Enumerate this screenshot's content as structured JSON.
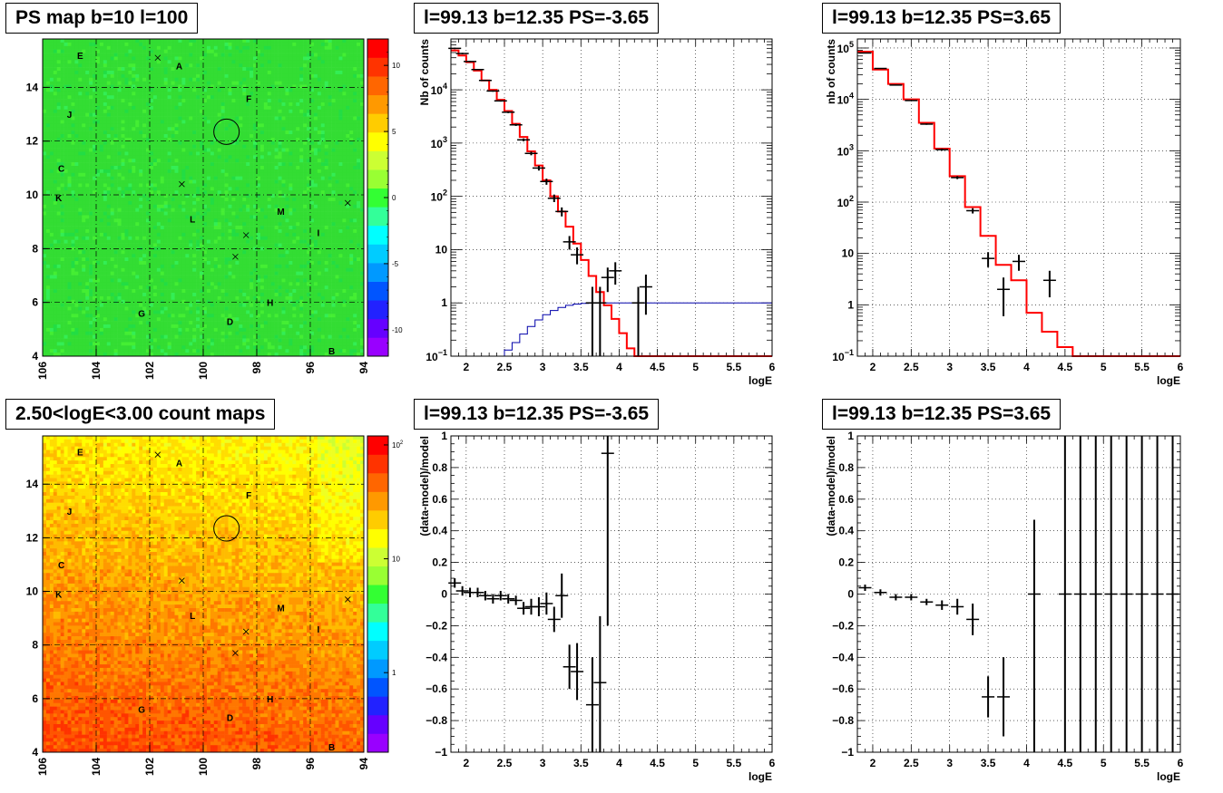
{
  "titles": {
    "map_top": "PS map b=10 l=100",
    "spec_left": "l=99.13 b=12.35 PS=-3.65",
    "spec_right": "l=99.13 b=12.35 PS=3.65",
    "map_bottom": "2.50<logE<3.00 count maps",
    "res_left": "l=99.13 b=12.35 PS=-3.65",
    "res_right": "l=99.13 b=12.35 PS=3.65"
  },
  "colors": {
    "model": "#ff0000",
    "ps_model": "#0000aa",
    "data": "#000000",
    "map_green": "#33dd33"
  },
  "chart_data": [
    {
      "type": "heatmap",
      "panel": "map_top",
      "title": "PS map b=10 l=100",
      "x_ticks": [
        "106",
        "104",
        "102",
        "100",
        "98",
        "96",
        "94"
      ],
      "y_ticks": [
        "4",
        "6",
        "8",
        "10",
        "12",
        "14"
      ],
      "xlim": [
        106,
        94
      ],
      "ylim": [
        4,
        15.8
      ],
      "colorbar_ticks": [
        "10",
        "5",
        "0",
        "-5",
        "-10"
      ],
      "zlim": [
        -12,
        12
      ],
      "source_labels": [
        {
          "name": "E",
          "l": 104.6,
          "b": 15.2
        },
        {
          "name": "A",
          "l": 100.9,
          "b": 14.8
        },
        {
          "name": "F",
          "l": 98.3,
          "b": 13.6
        },
        {
          "name": "J",
          "l": 105.0,
          "b": 13.0
        },
        {
          "name": "C",
          "l": 105.3,
          "b": 11.0
        },
        {
          "name": "K",
          "l": 105.4,
          "b": 9.9
        },
        {
          "name": "L",
          "l": 100.4,
          "b": 9.1
        },
        {
          "name": "M",
          "l": 97.1,
          "b": 9.4
        },
        {
          "name": "I",
          "l": 95.7,
          "b": 8.6
        },
        {
          "name": "H",
          "l": 97.5,
          "b": 6.0
        },
        {
          "name": "G",
          "l": 102.3,
          "b": 5.6
        },
        {
          "name": "D",
          "l": 99.0,
          "b": 5.3
        },
        {
          "name": "B",
          "l": 95.2,
          "b": 4.2
        }
      ],
      "crosses": [
        {
          "l": 101.7,
          "b": 15.1
        },
        {
          "l": 100.8,
          "b": 10.4
        },
        {
          "l": 98.4,
          "b": 8.5
        },
        {
          "l": 98.8,
          "b": 7.7
        },
        {
          "l": 94.6,
          "b": 9.7
        }
      ],
      "circle": {
        "l": 99.13,
        "b": 12.35
      }
    },
    {
      "type": "line",
      "panel": "spec_left",
      "title": "l=99.13 b=12.35 PS=-3.65",
      "xlabel": "logE",
      "ylabel": "Nb of counts",
      "xlim": [
        1.8,
        6
      ],
      "ylim": [
        0.1,
        90000
      ],
      "log_y": true,
      "grid": true,
      "x_ticks": [
        "2",
        "2.5",
        "3",
        "3.5",
        "4",
        "4.5",
        "5",
        "5.5",
        "6"
      ],
      "y_ticks": [
        {
          "v": 0.1,
          "label": "10^-1"
        },
        {
          "v": 1,
          "label": "1"
        },
        {
          "v": 10,
          "label": "10"
        },
        {
          "v": 100,
          "label": "10^2"
        },
        {
          "v": 1000,
          "label": "10^3"
        },
        {
          "v": 10000,
          "label": "10^4"
        }
      ],
      "model_edges": [
        1.8,
        1.9,
        2.0,
        2.1,
        2.2,
        2.3,
        2.4,
        2.5,
        2.6,
        2.7,
        2.8,
        2.9,
        3.0,
        3.1,
        3.2,
        3.3,
        3.4,
        3.5,
        3.6,
        3.7,
        3.8,
        3.9,
        4.0,
        4.1,
        4.2,
        4.3,
        6.0
      ],
      "model_values": [
        55000,
        44000,
        33000,
        23000,
        15000,
        10000,
        6500,
        4000,
        2300,
        1300,
        700,
        380,
        200,
        100,
        52,
        27,
        13,
        6.4,
        3.2,
        1.6,
        0.9,
        0.5,
        0.27,
        0.14,
        0.1,
        0.1
      ],
      "ps_model_edges": [
        2.4,
        2.5,
        2.6,
        2.7,
        2.8,
        2.9,
        3.0,
        3.1,
        3.2,
        3.3,
        3.4,
        3.5,
        3.6,
        3.7,
        3.8,
        6.0
      ],
      "ps_model_values": [
        0.1,
        0.13,
        0.18,
        0.26,
        0.36,
        0.48,
        0.6,
        0.72,
        0.82,
        0.9,
        0.95,
        0.98,
        0.99,
        1.0,
        1.0
      ],
      "data_points": [
        {
          "x": 1.85,
          "y": 60000,
          "lo": 58000,
          "hi": 62000
        },
        {
          "x": 1.95,
          "y": 48000,
          "lo": 46500,
          "hi": 49500
        },
        {
          "x": 2.05,
          "y": 34000,
          "lo": 33000,
          "hi": 35000
        },
        {
          "x": 2.15,
          "y": 24000,
          "lo": 23300,
          "hi": 24700
        },
        {
          "x": 2.25,
          "y": 15000,
          "lo": 14600,
          "hi": 15400
        },
        {
          "x": 2.35,
          "y": 9500,
          "lo": 9200,
          "hi": 9800
        },
        {
          "x": 2.45,
          "y": 6200,
          "lo": 6000,
          "hi": 6400
        },
        {
          "x": 2.55,
          "y": 3800,
          "lo": 3650,
          "hi": 3950
        },
        {
          "x": 2.65,
          "y": 2200,
          "lo": 2100,
          "hi": 2300
        },
        {
          "x": 2.75,
          "y": 1150,
          "lo": 1080,
          "hi": 1220
        },
        {
          "x": 2.85,
          "y": 640,
          "lo": 590,
          "hi": 690
        },
        {
          "x": 2.95,
          "y": 340,
          "lo": 305,
          "hi": 375
        },
        {
          "x": 3.05,
          "y": 190,
          "lo": 165,
          "hi": 215
        },
        {
          "x": 3.15,
          "y": 92,
          "lo": 78,
          "hi": 108
        },
        {
          "x": 3.25,
          "y": 52,
          "lo": 42,
          "hi": 62
        },
        {
          "x": 3.35,
          "y": 14,
          "lo": 10,
          "hi": 18
        },
        {
          "x": 3.45,
          "y": 8,
          "lo": 5.3,
          "hi": 11
        },
        {
          "x": 3.65,
          "y": 1,
          "lo": 0.1,
          "hi": 2
        },
        {
          "x": 3.75,
          "y": 1,
          "lo": 0.1,
          "hi": 2
        },
        {
          "x": 3.85,
          "y": 3,
          "lo": 1.6,
          "hi": 4.6
        },
        {
          "x": 3.95,
          "y": 4,
          "lo": 2.2,
          "hi": 5.8
        },
        {
          "x": 4.25,
          "y": 1,
          "lo": 0.1,
          "hi": 2
        },
        {
          "x": 4.35,
          "y": 2,
          "lo": 0.6,
          "hi": 3.4
        }
      ]
    },
    {
      "type": "line",
      "panel": "spec_right",
      "title": "l=99.13 b=12.35 PS=3.65",
      "xlabel": "logE",
      "ylabel": "nb of counts",
      "xlim": [
        1.8,
        6
      ],
      "ylim": [
        0.1,
        150000
      ],
      "log_y": true,
      "grid": true,
      "x_ticks": [
        "2",
        "2.5",
        "3",
        "3.5",
        "4",
        "4.5",
        "5",
        "5.5",
        "6"
      ],
      "y_ticks": [
        {
          "v": 0.1,
          "label": "10^-1"
        },
        {
          "v": 1,
          "label": "1"
        },
        {
          "v": 10,
          "label": "10"
        },
        {
          "v": 100,
          "label": "10^2"
        },
        {
          "v": 1000,
          "label": "10^3"
        },
        {
          "v": 10000,
          "label": "10^4"
        },
        {
          "v": 100000,
          "label": "10^5"
        }
      ],
      "model_edges": [
        1.8,
        2.0,
        2.2,
        2.4,
        2.6,
        2.8,
        3.0,
        3.2,
        3.4,
        3.6,
        3.8,
        4.0,
        4.2,
        4.4,
        4.6,
        6.0
      ],
      "model_values": [
        85000,
        38000,
        20000,
        10000,
        3500,
        1100,
        320,
        80,
        22,
        6,
        3,
        0.7,
        0.3,
        0.15,
        0.1
      ],
      "data_points": [
        {
          "x": 1.9,
          "y": 80000,
          "lo": 79000,
          "hi": 81000
        },
        {
          "x": 2.1,
          "y": 40000,
          "lo": 39500,
          "hi": 40500
        },
        {
          "x": 2.3,
          "y": 19000,
          "lo": 18600,
          "hi": 19400
        },
        {
          "x": 2.5,
          "y": 9500,
          "lo": 9300,
          "hi": 9700
        },
        {
          "x": 2.7,
          "y": 3300,
          "lo": 3200,
          "hi": 3400
        },
        {
          "x": 2.9,
          "y": 1050,
          "lo": 1000,
          "hi": 1100
        },
        {
          "x": 3.1,
          "y": 300,
          "lo": 280,
          "hi": 320
        },
        {
          "x": 3.3,
          "y": 68,
          "lo": 60,
          "hi": 76
        },
        {
          "x": 3.5,
          "y": 8,
          "lo": 5.4,
          "hi": 10.6
        },
        {
          "x": 3.7,
          "y": 2,
          "lo": 0.6,
          "hi": 3.4
        },
        {
          "x": 3.9,
          "y": 7,
          "lo": 4.6,
          "hi": 9.4
        },
        {
          "x": 4.3,
          "y": 3,
          "lo": 1.4,
          "hi": 4.6
        }
      ]
    },
    {
      "type": "heatmap",
      "panel": "map_bottom",
      "title": "2.50<logE<3.00 count maps",
      "x_ticks": [
        "106",
        "104",
        "102",
        "100",
        "98",
        "96",
        "94"
      ],
      "y_ticks": [
        "4",
        "6",
        "8",
        "10",
        "12",
        "14"
      ],
      "xlim": [
        106,
        94
      ],
      "ylim": [
        4,
        15.8
      ],
      "colorbar_ticks": [
        {
          "v": 100,
          "label": "10^2"
        },
        {
          "v": 10,
          "label": "10"
        },
        {
          "v": 1,
          "label": "1"
        }
      ],
      "zlim": [
        0.2,
        120
      ],
      "log_z": true
    },
    {
      "type": "scatter",
      "panel": "res_left",
      "title": "l=99.13 b=12.35 PS=-3.65",
      "xlabel": "logE",
      "ylabel": "(data-model)/model",
      "xlim": [
        1.8,
        6
      ],
      "ylim": [
        -1,
        1
      ],
      "grid": true,
      "x_ticks": [
        "2",
        "2.5",
        "3",
        "3.5",
        "4",
        "4.5",
        "5",
        "5.5",
        "6"
      ],
      "y_ticks": [
        "-1",
        "-0.8",
        "-0.6",
        "-0.4",
        "-0.2",
        "0",
        "0.2",
        "0.4",
        "0.6",
        "0.8",
        "1"
      ],
      "data_points": [
        {
          "x": 1.85,
          "y": 0.07,
          "lo": 0.04,
          "hi": 0.1
        },
        {
          "x": 1.95,
          "y": 0.02,
          "lo": -0.01,
          "hi": 0.05
        },
        {
          "x": 2.05,
          "y": 0.01,
          "lo": -0.02,
          "hi": 0.04
        },
        {
          "x": 2.15,
          "y": 0.01,
          "lo": -0.02,
          "hi": 0.04
        },
        {
          "x": 2.25,
          "y": -0.01,
          "lo": -0.04,
          "hi": 0.02
        },
        {
          "x": 2.35,
          "y": -0.03,
          "lo": -0.06,
          "hi": 0.0
        },
        {
          "x": 2.45,
          "y": -0.01,
          "lo": -0.04,
          "hi": 0.02
        },
        {
          "x": 2.55,
          "y": -0.03,
          "lo": -0.06,
          "hi": 0.0
        },
        {
          "x": 2.65,
          "y": -0.04,
          "lo": -0.07,
          "hi": -0.01
        },
        {
          "x": 2.75,
          "y": -0.09,
          "lo": -0.13,
          "hi": -0.05
        },
        {
          "x": 2.85,
          "y": -0.08,
          "lo": -0.13,
          "hi": -0.03
        },
        {
          "x": 2.95,
          "y": -0.08,
          "lo": -0.14,
          "hi": -0.02
        },
        {
          "x": 3.05,
          "y": -0.06,
          "lo": -0.13,
          "hi": 0.01
        },
        {
          "x": 3.15,
          "y": -0.16,
          "lo": -0.24,
          "hi": -0.08
        },
        {
          "x": 3.25,
          "y": -0.01,
          "lo": -0.15,
          "hi": 0.13
        },
        {
          "x": 3.35,
          "y": -0.46,
          "lo": -0.6,
          "hi": -0.32
        },
        {
          "x": 3.45,
          "y": -0.49,
          "lo": -0.67,
          "hi": -0.31
        },
        {
          "x": 3.65,
          "y": -0.7,
          "lo": -1.0,
          "hi": -0.4
        },
        {
          "x": 3.75,
          "y": -0.56,
          "lo": -1.0,
          "hi": -0.14
        },
        {
          "x": 3.85,
          "y": 0.89,
          "lo": -0.2,
          "hi": 1.0
        }
      ]
    },
    {
      "type": "scatter",
      "panel": "res_right",
      "title": "l=99.13 b=12.35 PS=3.65",
      "xlabel": "logE",
      "ylabel": "(data-model)/model",
      "xlim": [
        1.8,
        6
      ],
      "ylim": [
        -1,
        1
      ],
      "grid": true,
      "x_ticks": [
        "2",
        "2.5",
        "3",
        "3.5",
        "4",
        "4.5",
        "5",
        "5.5",
        "6"
      ],
      "y_ticks": [
        "-1",
        "-0.8",
        "-0.6",
        "-0.4",
        "-0.2",
        "0",
        "0.2",
        "0.4",
        "0.6",
        "0.8",
        "1"
      ],
      "data_points": [
        {
          "x": 1.9,
          "y": 0.04,
          "lo": 0.02,
          "hi": 0.06
        },
        {
          "x": 2.1,
          "y": 0.01,
          "lo": -0.01,
          "hi": 0.03
        },
        {
          "x": 2.3,
          "y": -0.02,
          "lo": -0.04,
          "hi": 0.0
        },
        {
          "x": 2.5,
          "y": -0.02,
          "lo": -0.04,
          "hi": 0.0
        },
        {
          "x": 2.7,
          "y": -0.05,
          "lo": -0.07,
          "hi": -0.03
        },
        {
          "x": 2.9,
          "y": -0.07,
          "lo": -0.1,
          "hi": -0.04
        },
        {
          "x": 3.1,
          "y": -0.08,
          "lo": -0.13,
          "hi": -0.03
        },
        {
          "x": 3.3,
          "y": -0.16,
          "lo": -0.26,
          "hi": -0.06
        },
        {
          "x": 3.5,
          "y": -0.65,
          "lo": -0.78,
          "hi": -0.52
        },
        {
          "x": 3.7,
          "y": -0.65,
          "lo": -0.9,
          "hi": -0.4
        },
        {
          "x": 4.1,
          "y": 0.0,
          "lo": -1.0,
          "hi": 0.47
        },
        {
          "x": 4.5,
          "y": 0.0,
          "lo": -1.0,
          "hi": 1.0
        },
        {
          "x": 4.7,
          "y": 0.0,
          "lo": -1.0,
          "hi": 1.0
        },
        {
          "x": 4.9,
          "y": 0.0,
          "lo": -1.0,
          "hi": 1.0
        },
        {
          "x": 5.1,
          "y": 0.0,
          "lo": -1.0,
          "hi": 1.0
        },
        {
          "x": 5.3,
          "y": 0.0,
          "lo": -1.0,
          "hi": 1.0
        },
        {
          "x": 5.5,
          "y": 0.0,
          "lo": -1.0,
          "hi": 1.0
        },
        {
          "x": 5.7,
          "y": 0.0,
          "lo": -1.0,
          "hi": 1.0
        },
        {
          "x": 5.9,
          "y": 0.0,
          "lo": -1.0,
          "hi": 1.0
        }
      ]
    }
  ]
}
